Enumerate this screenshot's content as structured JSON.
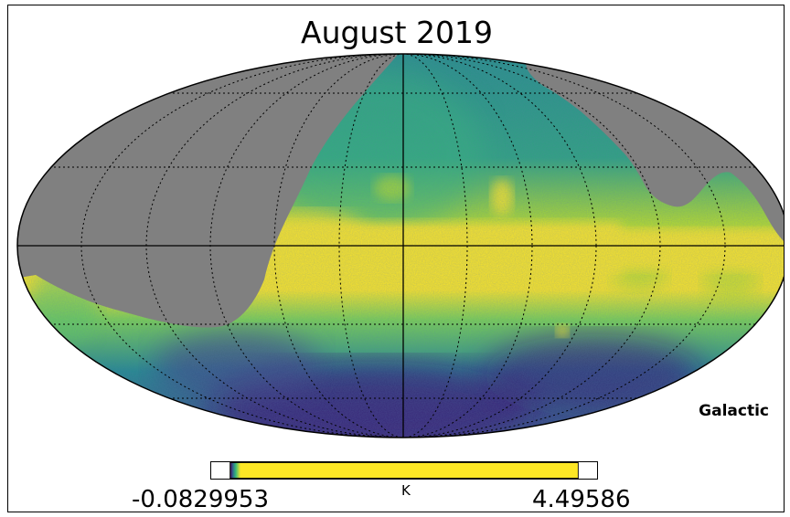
{
  "title": "August 2019",
  "coordinate_system": "Galactic",
  "projection": "mollweide",
  "colorbar": {
    "min_label": "-0.0829953",
    "max_label": "4.49586",
    "unit": "K",
    "colormap": "viridis"
  },
  "colors": {
    "masked": "#808080",
    "low": "#3b0f70",
    "mid": "#21918c",
    "high": "#fde725",
    "graticule": "#000000"
  }
}
